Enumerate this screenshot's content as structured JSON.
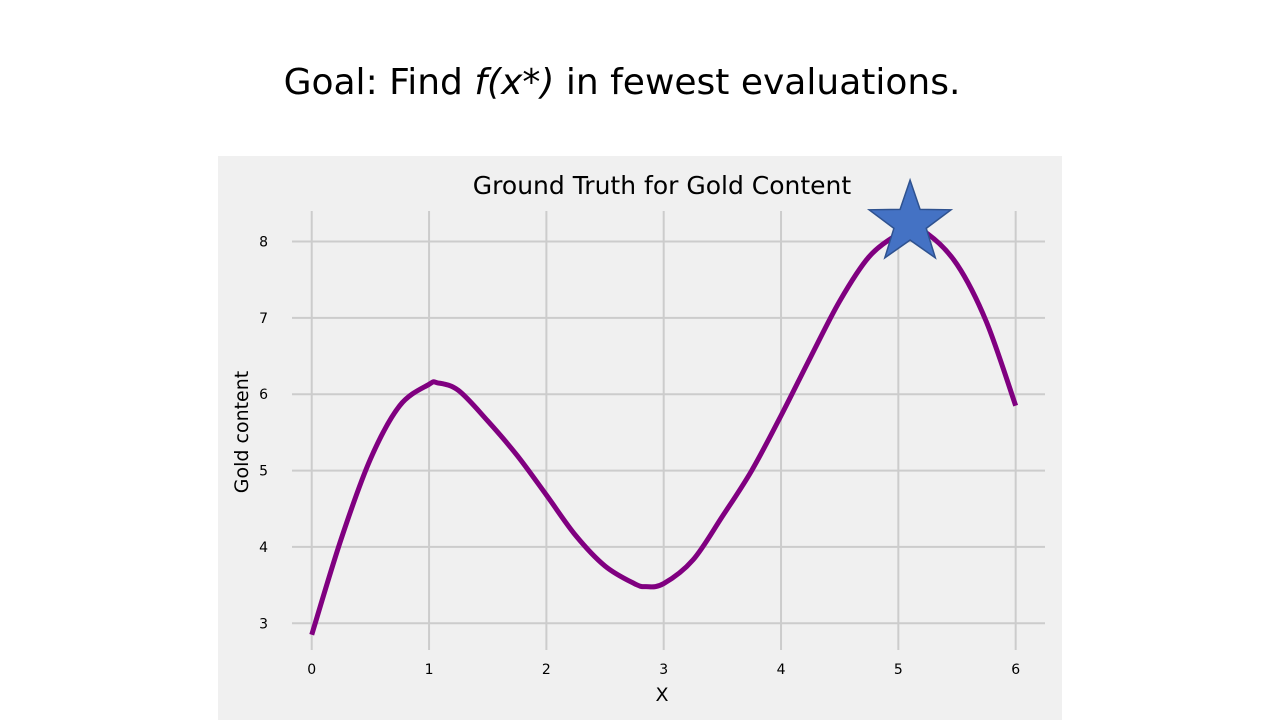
{
  "heading": {
    "prefix": "Goal: Find ",
    "math": "f(x*)",
    "suffix": " in fewest evaluations."
  },
  "colors": {
    "panel_background": "#f0f0f0",
    "grid": "#cccccc",
    "curve": "#800080",
    "star_fill": "#4472c4",
    "star_stroke": "#2f528f"
  },
  "chart_data": {
    "type": "line",
    "title": "Ground Truth for Gold Content",
    "xlabel": "X",
    "ylabel": "Gold content",
    "xlim": [
      -0.1,
      6.25
    ],
    "ylim": [
      2.65,
      8.4
    ],
    "xticks": [
      0,
      1,
      2,
      3,
      4,
      5,
      6
    ],
    "yticks": [
      3,
      4,
      5,
      6,
      7,
      8
    ],
    "grid": true,
    "legend": "none",
    "series": [
      {
        "x": [
          0,
          0.25,
          0.5,
          0.75,
          1.0,
          1.07,
          1.25,
          1.5,
          1.75,
          2.0,
          2.25,
          2.5,
          2.75,
          2.85,
          3.0,
          3.25,
          3.5,
          3.75,
          4.0,
          4.25,
          4.5,
          4.75,
          5.0,
          5.1,
          5.25,
          5.5,
          5.75,
          6.0
        ],
        "y": [
          2.85,
          4.1,
          5.15,
          5.85,
          6.13,
          6.15,
          6.05,
          5.65,
          5.2,
          4.68,
          4.15,
          3.75,
          3.52,
          3.48,
          3.52,
          3.83,
          4.4,
          5.0,
          5.72,
          6.48,
          7.22,
          7.8,
          8.1,
          8.15,
          8.1,
          7.7,
          6.95,
          5.85
        ]
      }
    ],
    "marker": {
      "shape": "star",
      "x": 5.1,
      "y": 8.15
    }
  }
}
